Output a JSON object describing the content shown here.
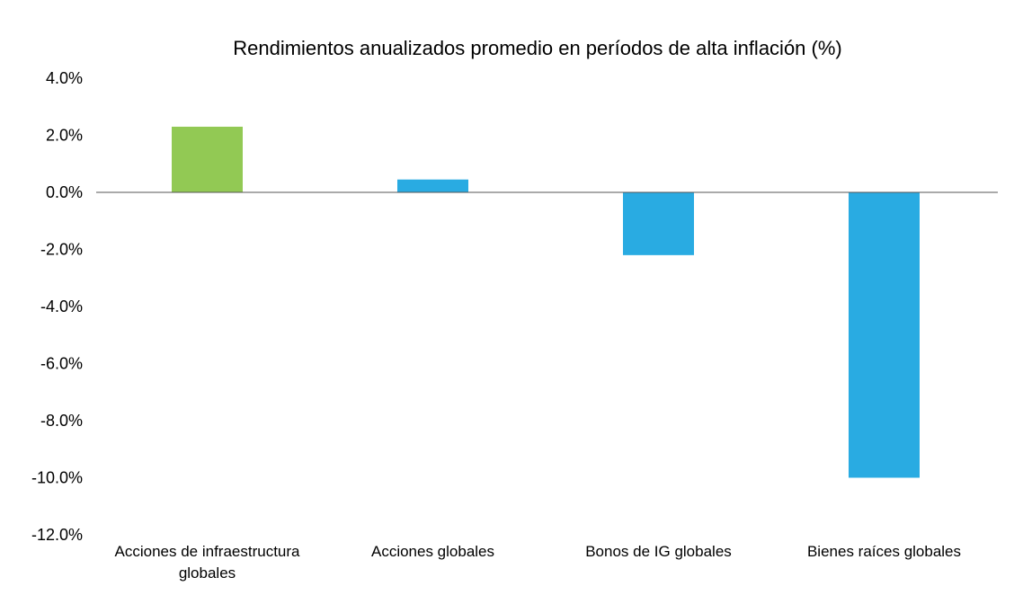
{
  "chart_data": {
    "type": "bar",
    "title": "Rendimientos anualizados promedio en períodos de alta inflación (%)",
    "xlabel": "",
    "ylabel": "",
    "categories": [
      [
        "Acciones de infraestructura",
        "globales"
      ],
      [
        "Acciones globales"
      ],
      [
        "Bonos de IG globales"
      ],
      [
        "Bienes raíces globales"
      ]
    ],
    "values": [
      2.3,
      0.45,
      -2.2,
      -10.0
    ],
    "bar_colors": [
      "#92c954",
      "#29abe2",
      "#29abe2",
      "#29abe2"
    ],
    "ylim": [
      -12,
      4
    ],
    "y_ticks": [
      4,
      2,
      0,
      -2,
      -4,
      -6,
      -8,
      -10,
      -12
    ],
    "y_tick_labels": [
      "4.0%",
      "2.0%",
      "0.0%",
      "-2.0%",
      "-4.0%",
      "-6.0%",
      "-8.0%",
      "-10.0%",
      "-12.0%"
    ],
    "grid": false,
    "legend": "none",
    "baseline_color": "#555555"
  }
}
